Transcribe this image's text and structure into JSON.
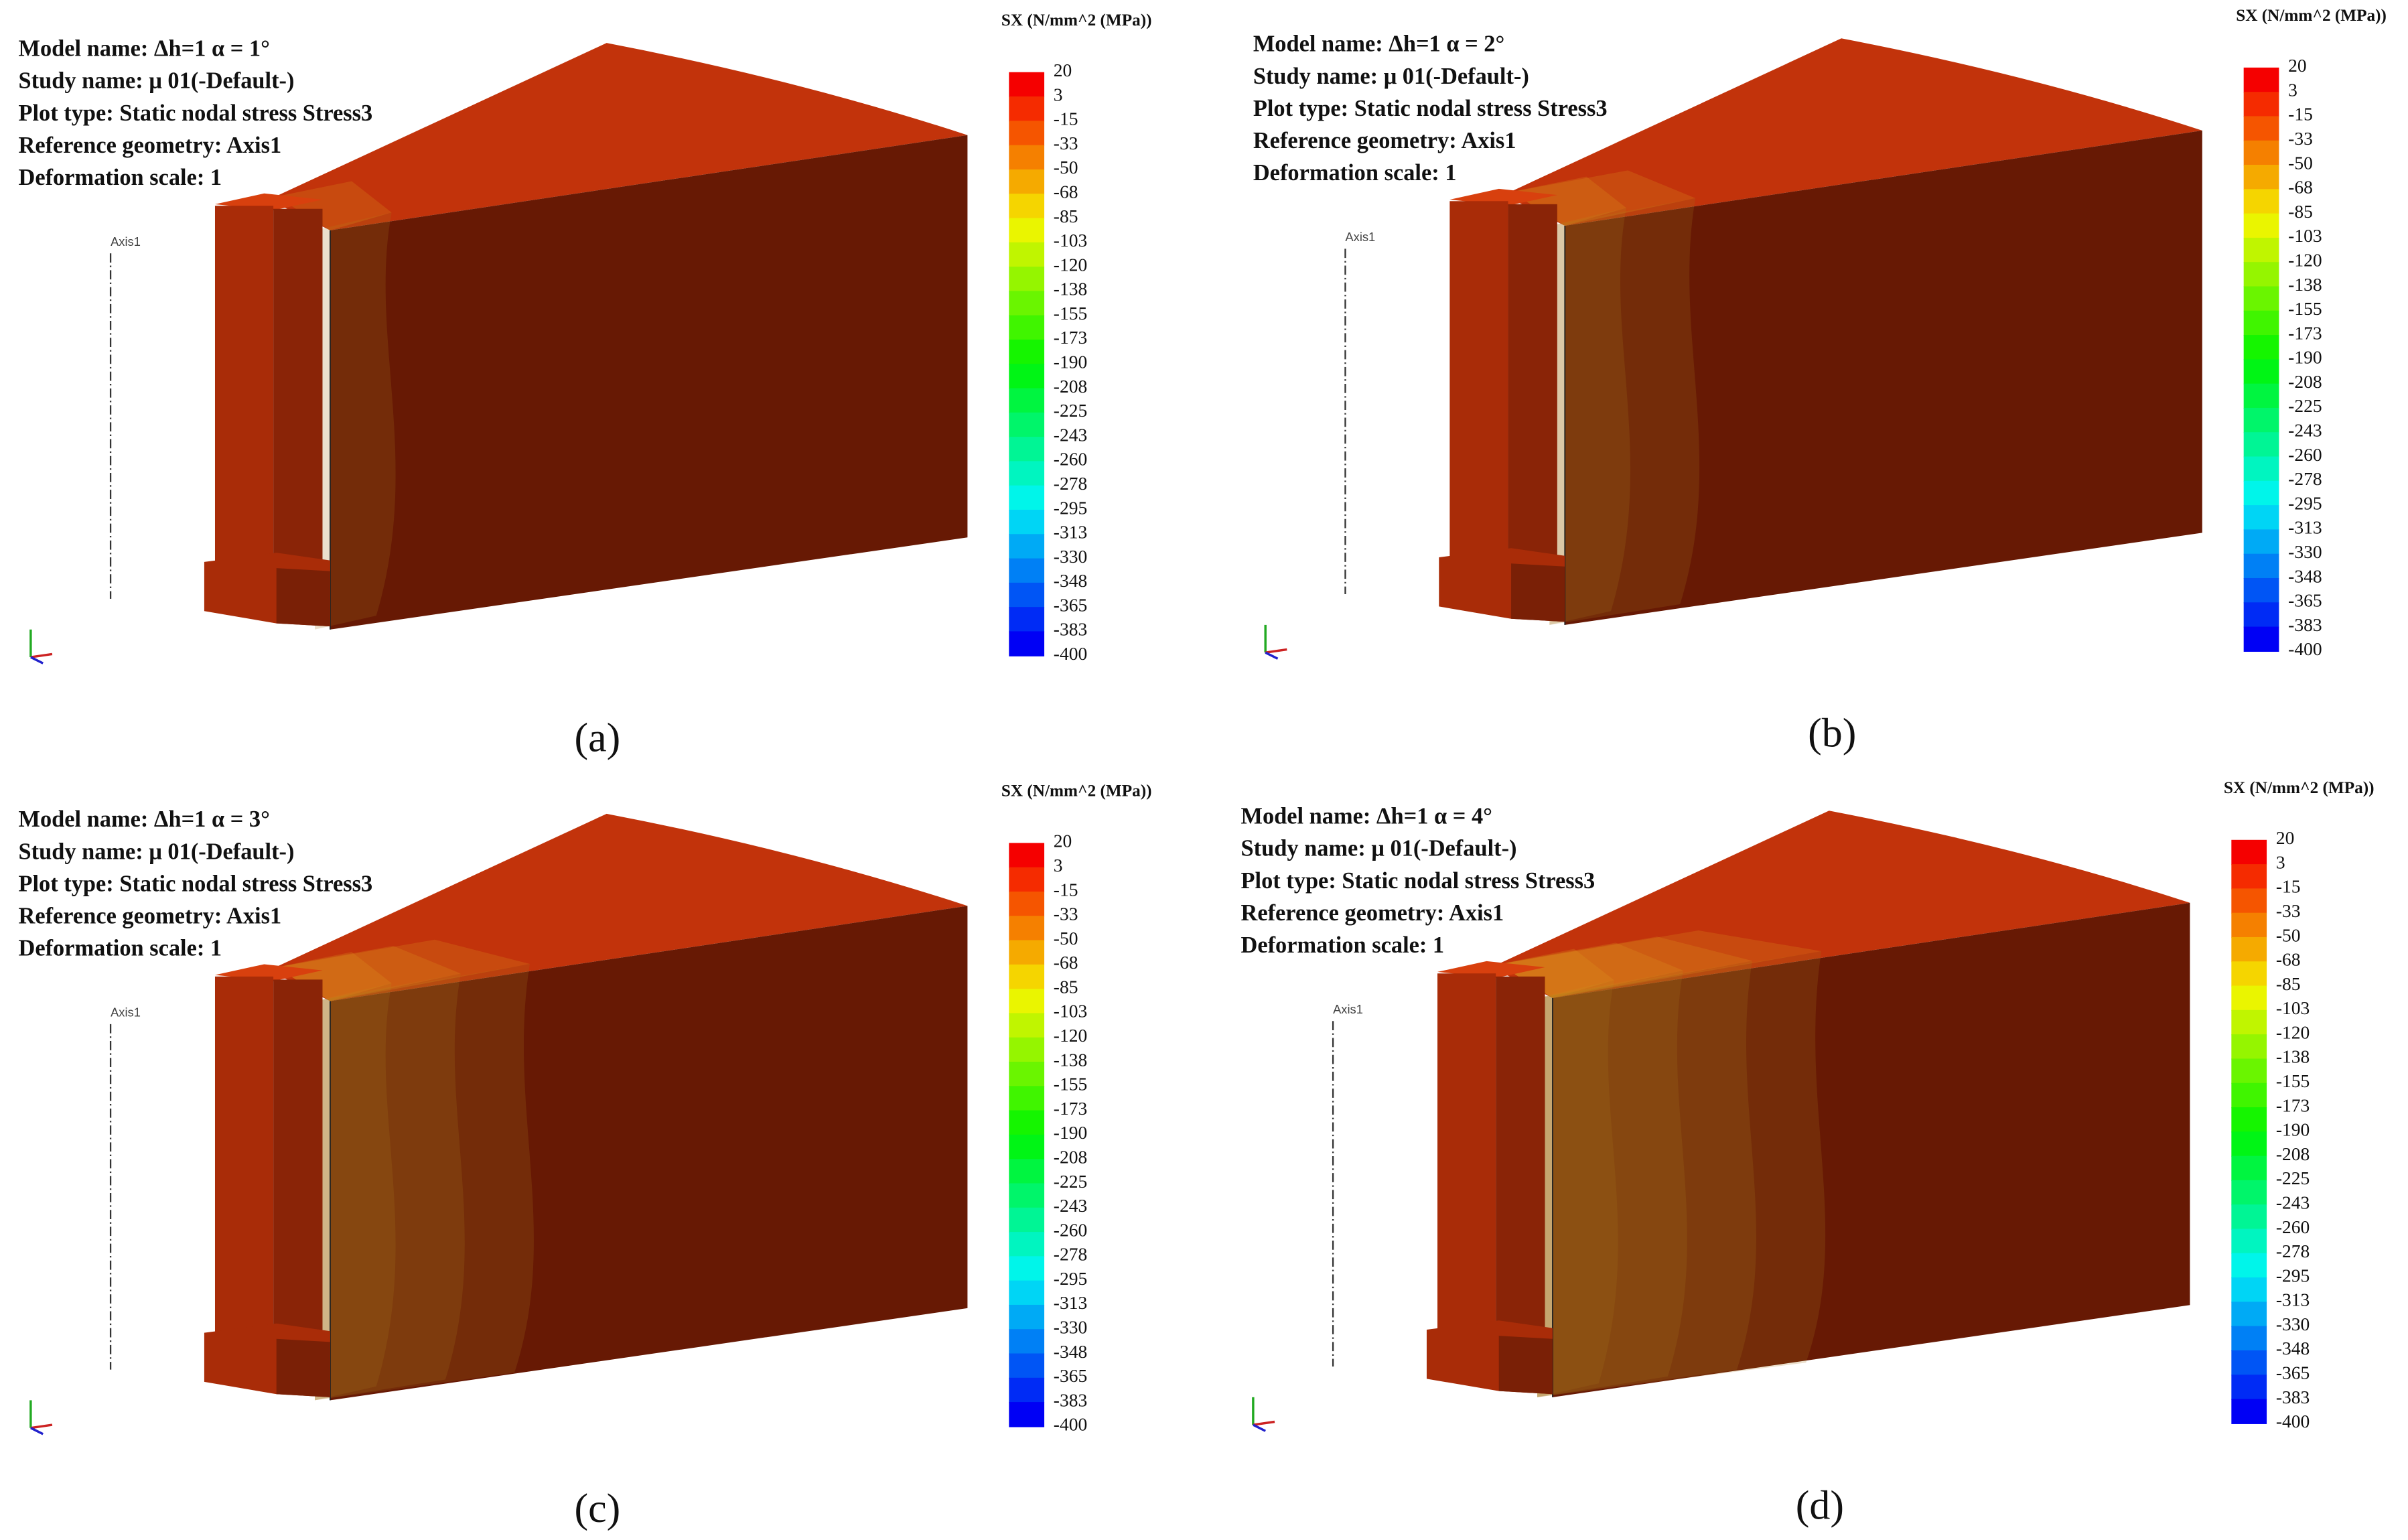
{
  "panels": [
    {
      "info": [
        "Model name: Δh=1 α = 1°",
        "Study name: μ 01(-Default-)",
        "Plot type: Static nodal stress Stress3",
        "Reference geometry: Axis1",
        "Deformation scale: 1"
      ],
      "legend_title": "SX (N/mm^2 (MPa))",
      "legend_labels": [
        20,
        3,
        -15,
        -33,
        -50,
        -68,
        -85,
        -103,
        -120,
        -138,
        -155,
        -173,
        -190,
        -208,
        -225,
        -243,
        -260,
        -278,
        -295,
        -313,
        -330,
        -348,
        -365,
        -383,
        -400
      ],
      "axis_label": "Axis1",
      "caption": "(a)"
    },
    {
      "info": [
        "Model name: Δh=1 α = 2°",
        "Study name: μ 01(-Default-)",
        "Plot type: Static nodal stress Stress3",
        "Reference geometry: Axis1",
        "Deformation scale: 1"
      ],
      "legend_title": "SX (N/mm^2 (MPa))",
      "legend_labels": [
        20,
        3,
        -15,
        -33,
        -50,
        -68,
        -85,
        -103,
        -120,
        -138,
        -155,
        -173,
        -190,
        -208,
        -225,
        -243,
        -260,
        -278,
        -295,
        -313,
        -330,
        -348,
        -365,
        -383,
        -400
      ],
      "axis_label": "Axis1",
      "caption": "(b)"
    },
    {
      "info": [
        "Model name: Δh=1 α = 3°",
        "Study name: μ 01(-Default-)",
        "Plot type: Static nodal stress Stress3",
        "Reference geometry: Axis1",
        "Deformation scale: 1"
      ],
      "legend_title": "SX (N/mm^2 (MPa))",
      "legend_labels": [
        20,
        3,
        -15,
        -33,
        -50,
        -68,
        -85,
        -103,
        -120,
        -138,
        -155,
        -173,
        -190,
        -208,
        -225,
        -243,
        -260,
        -278,
        -295,
        -313,
        -330,
        -348,
        -365,
        -383,
        -400
      ],
      "axis_label": "Axis1",
      "caption": "(c)"
    },
    {
      "info": [
        "Model name: Δh=1 α = 4°",
        "Study name: μ 01(-Default-)",
        "Plot type: Static nodal stress Stress3",
        "Reference geometry: Axis1",
        "Deformation scale: 1"
      ],
      "legend_title": "SX (N/mm^2 (MPa))",
      "legend_labels": [
        20,
        3,
        -15,
        -33,
        -50,
        -68,
        -85,
        -103,
        -120,
        -138,
        -155,
        -173,
        -190,
        -208,
        -225,
        -243,
        -260,
        -278,
        -295,
        -313,
        -330,
        -348,
        -365,
        -383,
        -400
      ],
      "axis_label": "Axis1",
      "caption": "(d)"
    }
  ]
}
